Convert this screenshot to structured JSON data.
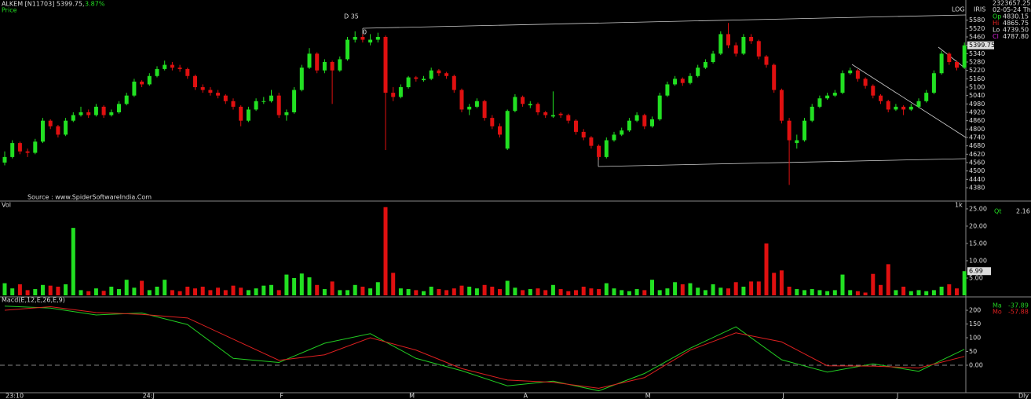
{
  "header": {
    "title": "ALKEM [N11703] 5399.75,",
    "change": "3.87%",
    "price_label": "Price",
    "log": "LOG",
    "iris": "IRIS",
    "dly": "Dly",
    "source": "Source : www.SpiderSoftwareIndia.Com",
    "marks": [
      "D 35",
      "0"
    ],
    "info": [
      {
        "label": "2323657.25",
        "color": "#dddddd"
      },
      {
        "label": "02-05-24 Th",
        "color": "#dddddd"
      },
      {
        "label": "Op",
        "value": "4830.15",
        "color": "#22dd22"
      },
      {
        "label": "Hi",
        "value": "4865.75",
        "color": "#ee2222"
      },
      {
        "label": "Lo",
        "value": "4739.50",
        "color": "#dddddd"
      },
      {
        "label": "Cl",
        "value": "4787.80",
        "color": "#dd22dd"
      }
    ]
  },
  "chart_data": [
    {
      "type": "candlestick",
      "up_color": "#22e022",
      "down_color": "#e01010",
      "log_scale": true,
      "ylim": [
        4290,
        5640
      ],
      "yticks": [
        5580,
        5520,
        5460,
        5400,
        5340,
        5280,
        5220,
        5160,
        5100,
        5040,
        4980,
        4920,
        4860,
        4800,
        4740,
        4680,
        4620,
        4560,
        4500,
        4440,
        4380
      ],
      "categories": [
        "23:10",
        null,
        null,
        null,
        null,
        null,
        null,
        null,
        null,
        null,
        null,
        null,
        null,
        null,
        null,
        null,
        null,
        null,
        "24:J",
        null,
        null,
        null,
        null,
        null,
        null,
        null,
        null,
        null,
        null,
        null,
        null,
        null,
        null,
        null,
        null,
        null,
        "F",
        null,
        null,
        null,
        null,
        null,
        null,
        null,
        null,
        null,
        null,
        null,
        null,
        null,
        null,
        null,
        null,
        "M",
        null,
        null,
        null,
        null,
        null,
        null,
        null,
        null,
        null,
        null,
        null,
        null,
        null,
        null,
        "A",
        null,
        null,
        null,
        null,
        null,
        null,
        null,
        null,
        null,
        null,
        null,
        null,
        null,
        null,
        null,
        "M",
        null,
        null,
        null,
        null,
        null,
        null,
        null,
        null,
        null,
        null,
        null,
        null,
        null,
        null,
        null,
        null,
        null,
        "J",
        null,
        null,
        null,
        null,
        null,
        null,
        null,
        null,
        null,
        null,
        null,
        null,
        null,
        null,
        "J",
        null,
        null,
        null,
        null,
        null,
        null,
        null,
        null,
        null
      ],
      "ohlc": [
        [
          4560,
          4640,
          4540,
          4600
        ],
        [
          4600,
          4720,
          4590,
          4700
        ],
        [
          4700,
          4710,
          4620,
          4640
        ],
        [
          4640,
          4660,
          4600,
          4630
        ],
        [
          4630,
          4730,
          4620,
          4710
        ],
        [
          4710,
          4880,
          4700,
          4860
        ],
        [
          4860,
          4870,
          4800,
          4820
        ],
        [
          4820,
          4830,
          4740,
          4760
        ],
        [
          4760,
          4880,
          4750,
          4860
        ],
        [
          4860,
          4920,
          4850,
          4900
        ],
        [
          4900,
          4960,
          4890,
          4920
        ],
        [
          4920,
          4940,
          4880,
          4900
        ],
        [
          4900,
          4980,
          4890,
          4960
        ],
        [
          4960,
          4970,
          4880,
          4900
        ],
        [
          4900,
          4940,
          4890,
          4920
        ],
        [
          4920,
          5000,
          4910,
          4980
        ],
        [
          4980,
          5060,
          4970,
          5040
        ],
        [
          5040,
          5160,
          5030,
          5140
        ],
        [
          5140,
          5150,
          5100,
          5120
        ],
        [
          5120,
          5200,
          5110,
          5180
        ],
        [
          5180,
          5250,
          5170,
          5230
        ],
        [
          5230,
          5290,
          5220,
          5260
        ],
        [
          5260,
          5280,
          5220,
          5240
        ],
        [
          5240,
          5260,
          5210,
          5230
        ],
        [
          5230,
          5240,
          5160,
          5180
        ],
        [
          5180,
          5190,
          5080,
          5100
        ],
        [
          5100,
          5120,
          5060,
          5080
        ],
        [
          5080,
          5100,
          5040,
          5060
        ],
        [
          5060,
          5080,
          5020,
          5040
        ],
        [
          5040,
          5050,
          4980,
          5000
        ],
        [
          5000,
          5020,
          4940,
          4960
        ],
        [
          4960,
          4970,
          4820,
          4860
        ],
        [
          4860,
          4960,
          4850,
          4940
        ],
        [
          4940,
          5020,
          4930,
          5000
        ],
        [
          5000,
          5030,
          4980,
          5000
        ],
        [
          5000,
          5080,
          4990,
          5040
        ],
        [
          5040,
          5060,
          4880,
          4900
        ],
        [
          4900,
          4940,
          4860,
          4920
        ],
        [
          4920,
          5100,
          4910,
          5080
        ],
        [
          5080,
          5260,
          5070,
          5240
        ],
        [
          5240,
          5380,
          5230,
          5340
        ],
        [
          5340,
          5350,
          5200,
          5220
        ],
        [
          5220,
          5300,
          5200,
          5280
        ],
        [
          5280,
          5290,
          4980,
          5220
        ],
        [
          5220,
          5320,
          5210,
          5300
        ],
        [
          5300,
          5460,
          5290,
          5440
        ],
        [
          5440,
          5500,
          5420,
          5460
        ],
        [
          5460,
          5480,
          5420,
          5440
        ],
        [
          5420,
          5480,
          5400,
          5440
        ],
        [
          5440,
          5490,
          5420,
          5460
        ],
        [
          5460,
          5470,
          4650,
          5060
        ],
        [
          5060,
          5100,
          5000,
          5030
        ],
        [
          5030,
          5120,
          5020,
          5100
        ],
        [
          5100,
          5180,
          5090,
          5170
        ],
        [
          5170,
          5180,
          5140,
          5160
        ],
        [
          5150,
          5180,
          5140,
          5160
        ],
        [
          5160,
          5240,
          5150,
          5220
        ],
        [
          5220,
          5230,
          5180,
          5200
        ],
        [
          5200,
          5210,
          5160,
          5180
        ],
        [
          5180,
          5190,
          5060,
          5080
        ],
        [
          5080,
          5090,
          4920,
          4940
        ],
        [
          4940,
          4980,
          4900,
          4960
        ],
        [
          4960,
          5020,
          4950,
          5000
        ],
        [
          5000,
          5010,
          4860,
          4880
        ],
        [
          4880,
          4900,
          4800,
          4820
        ],
        [
          4820,
          4840,
          4740,
          4760
        ],
        [
          4660,
          4940,
          4650,
          4930
        ],
        [
          4930,
          5050,
          4920,
          5030
        ],
        [
          5030,
          5040,
          4960,
          4980
        ],
        [
          4970,
          5000,
          4950,
          4980
        ],
        [
          4980,
          4990,
          4900,
          4920
        ],
        [
          4920,
          4930,
          4880,
          4900
        ],
        [
          4890,
          5070,
          4880,
          4900
        ],
        [
          4910,
          4920,
          4880,
          4900
        ],
        [
          4900,
          4910,
          4840,
          4860
        ],
        [
          4860,
          4870,
          4760,
          4780
        ],
        [
          4780,
          4800,
          4720,
          4740
        ],
        [
          4740,
          4750,
          4660,
          4680
        ],
        [
          4680,
          4690,
          4580,
          4600
        ],
        [
          4600,
          4740,
          4590,
          4720
        ],
        [
          4720,
          4780,
          4710,
          4760
        ],
        [
          4760,
          4810,
          4750,
          4790
        ],
        [
          4790,
          4880,
          4780,
          4860
        ],
        [
          4860,
          4920,
          4850,
          4900
        ],
        [
          4900,
          4910,
          4800,
          4820
        ],
        [
          4820,
          4890,
          4810,
          4870
        ],
        [
          4870,
          5060,
          4860,
          5040
        ],
        [
          5040,
          5140,
          5030,
          5120
        ],
        [
          5120,
          5180,
          5110,
          5160
        ],
        [
          5160,
          5170,
          5110,
          5130
        ],
        [
          5130,
          5200,
          5120,
          5180
        ],
        [
          5180,
          5260,
          5170,
          5240
        ],
        [
          5240,
          5300,
          5230,
          5280
        ],
        [
          5280,
          5360,
          5270,
          5340
        ],
        [
          5340,
          5500,
          5330,
          5480
        ],
        [
          5480,
          5560,
          5380,
          5400
        ],
        [
          5400,
          5420,
          5320,
          5340
        ],
        [
          5340,
          5480,
          5330,
          5460
        ],
        [
          5460,
          5480,
          5410,
          5430
        ],
        [
          5430,
          5440,
          5300,
          5320
        ],
        [
          5320,
          5330,
          5240,
          5260
        ],
        [
          5260,
          5270,
          5060,
          5080
        ],
        [
          5080,
          5090,
          4840,
          4860
        ],
        [
          4860,
          4880,
          4400,
          4720
        ],
        [
          4700,
          4760,
          4660,
          4720
        ],
        [
          4720,
          4880,
          4710,
          4860
        ],
        [
          4860,
          4980,
          4850,
          4960
        ],
        [
          4960,
          5040,
          4950,
          5020
        ],
        [
          5020,
          5060,
          5010,
          5040
        ],
        [
          5040,
          5080,
          5030,
          5060
        ],
        [
          5060,
          5220,
          5050,
          5200
        ],
        [
          5200,
          5240,
          5190,
          5220
        ],
        [
          5220,
          5230,
          5140,
          5160
        ],
        [
          5160,
          5170,
          5090,
          5110
        ],
        [
          5110,
          5120,
          5020,
          5040
        ],
        [
          5040,
          5050,
          4980,
          5000
        ],
        [
          5000,
          5010,
          4920,
          4940
        ],
        [
          4940,
          4980,
          4930,
          4960
        ],
        [
          4960,
          4970,
          4900,
          4940
        ],
        [
          4940,
          4980,
          4930,
          4960
        ],
        [
          4960,
          5020,
          4950,
          5000
        ],
        [
          5000,
          5080,
          4990,
          5060
        ],
        [
          5060,
          5220,
          5050,
          5200
        ],
        [
          5200,
          5360,
          5190,
          5340
        ],
        [
          5340,
          5350,
          5260,
          5280
        ],
        [
          5280,
          5290,
          5220,
          5240
        ],
        [
          5240,
          5420,
          5230,
          5399.75
        ]
      ]
    },
    {
      "type": "bar",
      "title": "Vol",
      "unit": "1k",
      "readout_label": "Qt",
      "readout": "2.16",
      "ylim": [
        0,
        26.8
      ],
      "yticks": [
        {
          "value": 25,
          "label": "25.00"
        },
        {
          "value": 20,
          "label": "20.00"
        },
        {
          "value": 15,
          "label": "15.00"
        },
        {
          "value": 10,
          "label": "10.00"
        },
        {
          "value": 5,
          "label": "5.00"
        }
      ],
      "values": [
        3.5,
        2.0,
        3.2,
        1.5,
        1.8,
        3.0,
        2.8,
        2.5,
        3.2,
        19.5,
        1.5,
        1.2,
        2.0,
        1.3,
        2.5,
        1.8,
        4.5,
        2.2,
        4.2,
        1.5,
        2.5,
        4.5,
        1.5,
        1.2,
        2.5,
        2.0,
        2.5,
        1.5,
        2.2,
        1.5,
        2.8,
        2.2,
        1.5,
        2.0,
        2.8,
        3.0,
        1.5,
        6.0,
        5.0,
        6.3,
        5.2,
        3.0,
        1.8,
        4.0,
        1.5,
        1.5,
        3.0,
        2.5,
        2.0,
        3.8,
        25.5,
        6.5,
        2.0,
        1.8,
        1.5,
        1.2,
        2.5,
        1.8,
        1.5,
        2.0,
        2.8,
        2.5,
        2.0,
        3.0,
        2.5,
        1.8,
        4.2,
        2.2,
        1.5,
        1.8,
        2.0,
        1.5,
        3.0,
        1.8,
        1.2,
        1.5,
        2.5,
        2.0,
        1.8,
        3.5,
        2.0,
        1.5,
        1.2,
        1.8,
        1.5,
        4.5,
        1.5,
        2.0,
        3.8,
        3.2,
        3.5,
        2.2,
        1.5,
        3.2,
        2.2,
        2.0,
        3.8,
        2.5,
        4.0,
        4.0,
        15.0,
        6.5,
        7.2,
        2.5,
        1.8,
        1.5,
        1.8,
        1.5,
        1.2,
        1.5,
        6.0,
        1.5,
        1.2,
        0.8,
        6.2,
        3.0,
        9.0,
        1.5,
        2.5,
        1.2,
        1.5,
        1.2,
        1.5,
        2.5,
        3.2,
        2.0,
        6.99
      ]
    },
    {
      "type": "line",
      "title": "Macd(E,12,E,26,E,9)",
      "zero_line": true,
      "ylim": [
        -100,
        243
      ],
      "yticks": [
        200,
        150,
        100,
        50,
        {
          "value": 0,
          "label": "0.00"
        }
      ],
      "x": [
        0,
        6,
        12,
        18,
        24,
        30,
        36,
        42,
        48,
        54,
        60,
        66,
        72,
        78,
        84,
        90,
        96,
        102,
        108,
        114,
        120,
        126
      ],
      "series": [
        {
          "name": "Ma",
          "readout": "-37.89",
          "color": "#22cc22",
          "values": [
            215,
            208,
            183,
            190,
            148,
            25,
            10,
            80,
            115,
            25,
            -20,
            -75,
            -58,
            -93,
            -30,
            62,
            140,
            20,
            -25,
            5,
            -22,
            58
          ]
        },
        {
          "name": "Mo",
          "readout": "-57.88",
          "color": "#dd2020",
          "values": [
            200,
            213,
            192,
            185,
            172,
            95,
            18,
            38,
            100,
            55,
            -12,
            -54,
            -62,
            -84,
            -45,
            55,
            118,
            85,
            -2,
            -3,
            -10,
            32
          ]
        }
      ]
    }
  ]
}
